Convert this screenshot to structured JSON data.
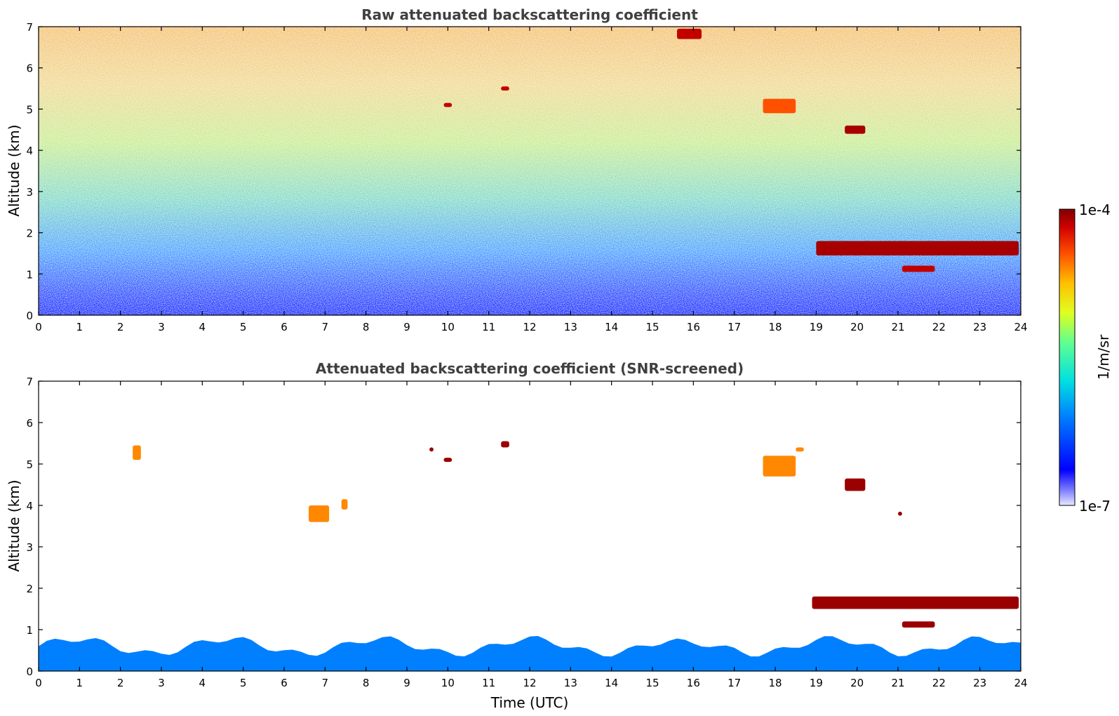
{
  "chart_data": [
    {
      "type": "heatmap",
      "title": "Raw attenuated backscattering coefficient",
      "xlabel": "",
      "ylabel": "Altitude (km)",
      "xlim": [
        0,
        24
      ],
      "ylim": [
        0,
        7
      ],
      "xticks": [
        "0",
        "1",
        "2",
        "3",
        "4",
        "5",
        "6",
        "7",
        "8",
        "9",
        "10",
        "11",
        "12",
        "13",
        "14",
        "15",
        "16",
        "17",
        "18",
        "19",
        "20",
        "21",
        "22",
        "23",
        "24"
      ],
      "yticks": [
        "0",
        "1",
        "2",
        "3",
        "4",
        "5",
        "6",
        "7"
      ],
      "features": [
        {
          "kind": "cloud",
          "x0": 9.9,
          "x1": 10.1,
          "y0": 5.05,
          "y1": 5.15,
          "level": 0.95
        },
        {
          "kind": "cloud",
          "x0": 11.3,
          "x1": 11.5,
          "y0": 5.45,
          "y1": 5.55,
          "level": 0.95
        },
        {
          "kind": "cloud",
          "x0": 15.6,
          "x1": 16.2,
          "y0": 6.7,
          "y1": 6.95,
          "level": 0.95
        },
        {
          "kind": "cloud",
          "x0": 17.7,
          "x1": 18.5,
          "y0": 4.9,
          "y1": 5.25,
          "level": 0.85
        },
        {
          "kind": "cloud",
          "x0": 19.7,
          "x1": 20.2,
          "y0": 4.4,
          "y1": 4.6,
          "level": 0.97
        },
        {
          "kind": "cloud",
          "x0": 19.0,
          "x1": 23.95,
          "y0": 1.45,
          "y1": 1.8,
          "level": 0.97
        },
        {
          "kind": "cloud",
          "x0": 21.1,
          "x1": 21.9,
          "y0": 1.05,
          "y1": 1.2,
          "level": 0.95
        }
      ]
    },
    {
      "type": "heatmap",
      "title": "Attenuated backscattering coefficient (SNR-screened)",
      "xlabel": "Time (UTC)",
      "ylabel": "Altitude (km)",
      "xlim": [
        0,
        24
      ],
      "ylim": [
        0,
        7
      ],
      "xticks": [
        "0",
        "1",
        "2",
        "3",
        "4",
        "5",
        "6",
        "7",
        "8",
        "9",
        "10",
        "11",
        "12",
        "13",
        "14",
        "15",
        "16",
        "17",
        "18",
        "19",
        "20",
        "21",
        "22",
        "23",
        "24"
      ],
      "yticks": [
        "0",
        "1",
        "2",
        "3",
        "4",
        "5",
        "6",
        "7"
      ],
      "features": [
        {
          "kind": "boundary-layer",
          "x0": 0,
          "x1": 24,
          "y0": 0,
          "y1": 0.6,
          "level": 0.3
        },
        {
          "kind": "cloud",
          "x0": 2.3,
          "x1": 2.5,
          "y0": 5.1,
          "y1": 5.45,
          "level": 0.8
        },
        {
          "kind": "cloud",
          "x0": 6.6,
          "x1": 7.1,
          "y0": 3.6,
          "y1": 4.0,
          "level": 0.8
        },
        {
          "kind": "cloud",
          "x0": 7.4,
          "x1": 7.55,
          "y0": 3.9,
          "y1": 4.15,
          "level": 0.8
        },
        {
          "kind": "cloud",
          "x0": 9.55,
          "x1": 9.65,
          "y0": 5.3,
          "y1": 5.4,
          "level": 0.98
        },
        {
          "kind": "cloud",
          "x0": 9.9,
          "x1": 10.1,
          "y0": 5.05,
          "y1": 5.15,
          "level": 0.98
        },
        {
          "kind": "cloud",
          "x0": 11.3,
          "x1": 11.5,
          "y0": 5.4,
          "y1": 5.55,
          "level": 0.98
        },
        {
          "kind": "cloud",
          "x0": 17.7,
          "x1": 18.5,
          "y0": 4.7,
          "y1": 5.2,
          "level": 0.8
        },
        {
          "kind": "cloud",
          "x0": 18.5,
          "x1": 18.7,
          "y0": 5.3,
          "y1": 5.4,
          "level": 0.8
        },
        {
          "kind": "cloud",
          "x0": 19.7,
          "x1": 20.2,
          "y0": 4.35,
          "y1": 4.65,
          "level": 0.98
        },
        {
          "kind": "cloud",
          "x0": 21.0,
          "x1": 21.1,
          "y0": 3.75,
          "y1": 3.85,
          "level": 0.98
        },
        {
          "kind": "cloud",
          "x0": 18.9,
          "x1": 23.95,
          "y0": 1.5,
          "y1": 1.8,
          "level": 0.98
        },
        {
          "kind": "cloud",
          "x0": 21.1,
          "x1": 21.9,
          "y0": 1.05,
          "y1": 1.2,
          "level": 0.98
        }
      ]
    }
  ],
  "colorbar": {
    "max_label": "1e-4",
    "min_label": "1e-7",
    "label": "1/m/sr",
    "scale": "log",
    "colormap": "jet"
  }
}
